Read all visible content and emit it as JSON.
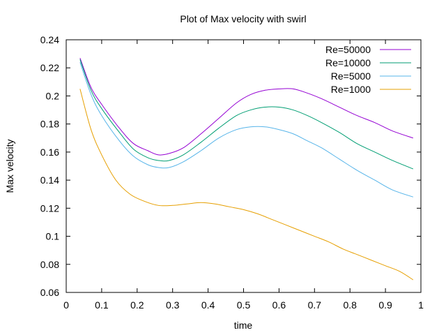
{
  "chart_data": {
    "type": "line",
    "title": "Plot of Max velocity with swirl",
    "xlabel": "time",
    "ylabel": "Max velocity",
    "xlim": [
      0,
      1
    ],
    "ylim": [
      0.06,
      0.24
    ],
    "xticks": [
      0,
      0.1,
      0.2,
      0.3,
      0.4,
      0.5,
      0.6,
      0.7,
      0.8,
      0.9,
      1
    ],
    "xtick_labels": [
      "0",
      "0.1",
      "0.2",
      "0.3",
      "0.4",
      "0.5",
      "0.6",
      "0.7",
      "0.8",
      "0.9",
      "1"
    ],
    "yticks": [
      0.06,
      0.08,
      0.1,
      0.12,
      0.14,
      0.16,
      0.18,
      0.2,
      0.22,
      0.24
    ],
    "ytick_labels": [
      "0.06",
      "0.08",
      "0.1",
      "0.12",
      "0.14",
      "0.16",
      "0.18",
      "0.2",
      "0.22",
      "0.24"
    ],
    "grid": false,
    "legend_position": "top-right",
    "series": [
      {
        "name": "Re=50000",
        "color": "#9400d3",
        "x": [
          0.039,
          0.07,
          0.1,
          0.15,
          0.19,
          0.23,
          0.26,
          0.29,
          0.33,
          0.38,
          0.43,
          0.48,
          0.52,
          0.56,
          0.6,
          0.64,
          0.68,
          0.72,
          0.77,
          0.82,
          0.87,
          0.92,
          0.978
        ],
        "y": [
          0.227,
          0.206,
          0.194,
          0.177,
          0.166,
          0.161,
          0.158,
          0.159,
          0.163,
          0.173,
          0.184,
          0.195,
          0.201,
          0.204,
          0.205,
          0.205,
          0.202,
          0.198,
          0.192,
          0.186,
          0.181,
          0.175,
          0.17
        ]
      },
      {
        "name": "Re=10000",
        "color": "#009e73",
        "x": [
          0.039,
          0.07,
          0.1,
          0.15,
          0.19,
          0.23,
          0.26,
          0.29,
          0.33,
          0.38,
          0.43,
          0.48,
          0.52,
          0.56,
          0.6,
          0.64,
          0.68,
          0.72,
          0.77,
          0.82,
          0.87,
          0.92,
          0.978
        ],
        "y": [
          0.226,
          0.204,
          0.191,
          0.174,
          0.162,
          0.156,
          0.154,
          0.154,
          0.158,
          0.167,
          0.177,
          0.186,
          0.19,
          0.192,
          0.192,
          0.19,
          0.186,
          0.181,
          0.174,
          0.166,
          0.16,
          0.154,
          0.148
        ]
      },
      {
        "name": "Re=5000",
        "color": "#56b4e9",
        "x": [
          0.039,
          0.07,
          0.1,
          0.15,
          0.19,
          0.23,
          0.26,
          0.29,
          0.33,
          0.38,
          0.43,
          0.48,
          0.52,
          0.56,
          0.6,
          0.64,
          0.68,
          0.72,
          0.77,
          0.82,
          0.87,
          0.92,
          0.978
        ],
        "y": [
          0.224,
          0.201,
          0.186,
          0.168,
          0.157,
          0.151,
          0.149,
          0.149,
          0.153,
          0.161,
          0.17,
          0.176,
          0.178,
          0.178,
          0.176,
          0.173,
          0.168,
          0.163,
          0.155,
          0.147,
          0.14,
          0.133,
          0.128
        ]
      },
      {
        "name": "Re=1000",
        "color": "#e69f00",
        "x": [
          0.039,
          0.07,
          0.1,
          0.14,
          0.18,
          0.22,
          0.26,
          0.3,
          0.34,
          0.38,
          0.42,
          0.46,
          0.5,
          0.54,
          0.58,
          0.62,
          0.66,
          0.7,
          0.74,
          0.78,
          0.82,
          0.86,
          0.9,
          0.94,
          0.978
        ],
        "y": [
          0.205,
          0.176,
          0.158,
          0.14,
          0.13,
          0.125,
          0.122,
          0.122,
          0.123,
          0.124,
          0.123,
          0.121,
          0.119,
          0.116,
          0.112,
          0.108,
          0.104,
          0.1,
          0.096,
          0.091,
          0.087,
          0.083,
          0.079,
          0.075,
          0.069
        ]
      }
    ]
  }
}
